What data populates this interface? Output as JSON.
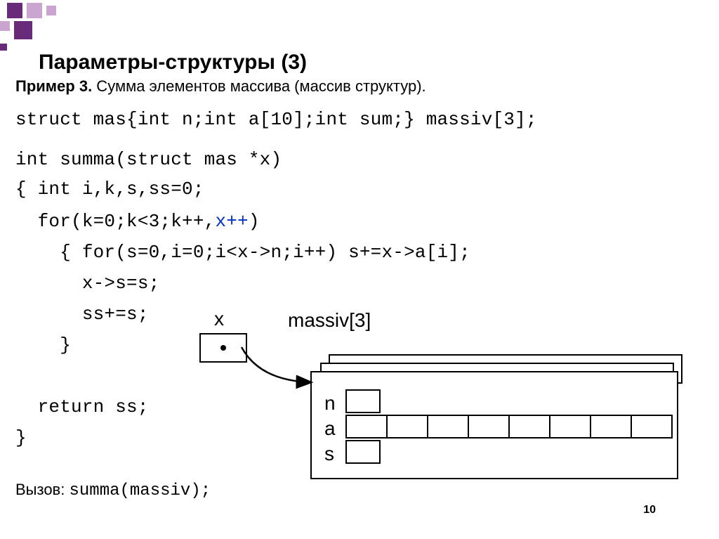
{
  "deco": {
    "color_dark": "#6a2a7a",
    "color_light": "#c9a5d0"
  },
  "title": "Параметры-структуры (3)",
  "example_label": "Пример 3.",
  "example_text": " Сумма элементов массива (массив структур).",
  "code": {
    "struct_decl": "struct mas{int n;int a[10];int sum;} massiv[3];",
    "fn_header": "int summa(struct mas *x)",
    "brace_open": "{ int i,k,s,ss=0;",
    "for_outer_a": "  for(k=0;k<3;k++,",
    "for_outer_b": "x++",
    "for_outer_c": ")",
    "for_inner": "    { for(s=0,i=0;i<x->n;i++) s+=x->a[i];",
    "assign_s": "      x->s=s;",
    "ss_plus": "      ss+=s;",
    "inner_close": "    }",
    "return_line": "  return ss;",
    "brace_close": "}"
  },
  "call_label": "Вызов: ",
  "call_code": "summa(massiv);",
  "diagram": {
    "x_label": "x",
    "massiv_label": "massiv[3]",
    "field_n": "n",
    "field_a": "a",
    "field_s": "s",
    "array_cells": 8
  },
  "page_number": "10"
}
